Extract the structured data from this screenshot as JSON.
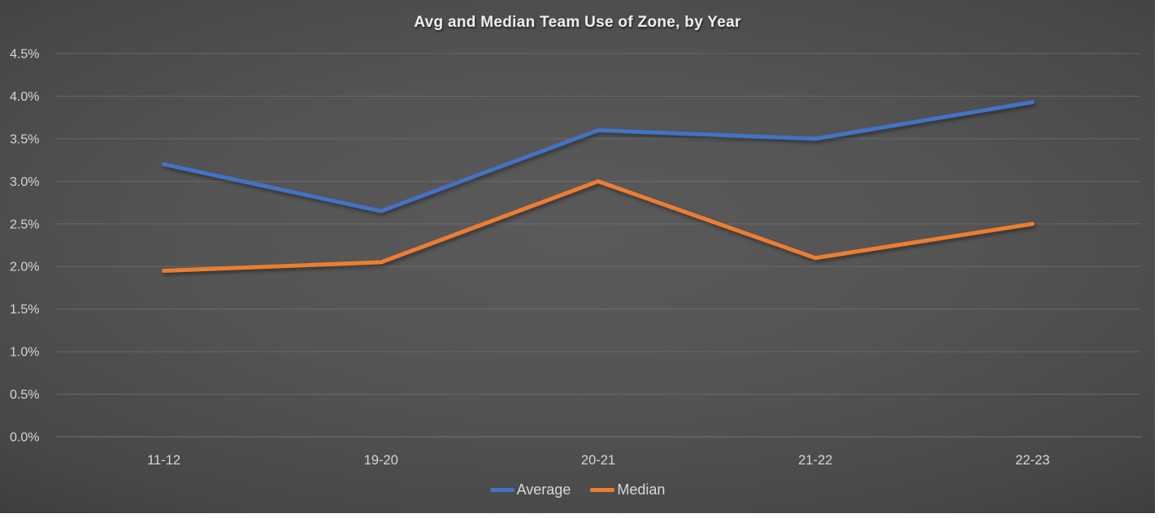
{
  "chart": {
    "title": "Avg and Median Team Use of Zone, by Year"
  },
  "chart_data": {
    "type": "line",
    "title": "Avg and Median Team Use of Zone, by Year",
    "categories": [
      "11-12",
      "19-20",
      "20-21",
      "21-22",
      "22-23"
    ],
    "series": [
      {
        "name": "Average",
        "color": "#4472C4",
        "values": [
          3.2,
          2.65,
          3.6,
          3.5,
          3.93
        ]
      },
      {
        "name": "Median",
        "color": "#ED7D31",
        "values": [
          1.95,
          2.05,
          3.0,
          2.1,
          2.5
        ]
      }
    ],
    "xlabel": "",
    "ylabel": "",
    "ylim": [
      0,
      4.5
    ],
    "y_axis": {
      "ticks": [
        "4.5%",
        "4.0%",
        "3.5%",
        "3.0%",
        "2.5%",
        "2.0%",
        "1.5%",
        "1.0%",
        "0.5%",
        "0.0%"
      ],
      "min": 0,
      "max": 4.5,
      "unit": "%"
    },
    "grid": true,
    "legend_position": "bottom",
    "colors": {
      "background_center": "#575757",
      "background_edge": "#1e1e1e",
      "gridline": "#808080",
      "tick_label": "#d6d6d6",
      "title_text": "#efefef",
      "legend_text": "#d9d9d9"
    }
  }
}
